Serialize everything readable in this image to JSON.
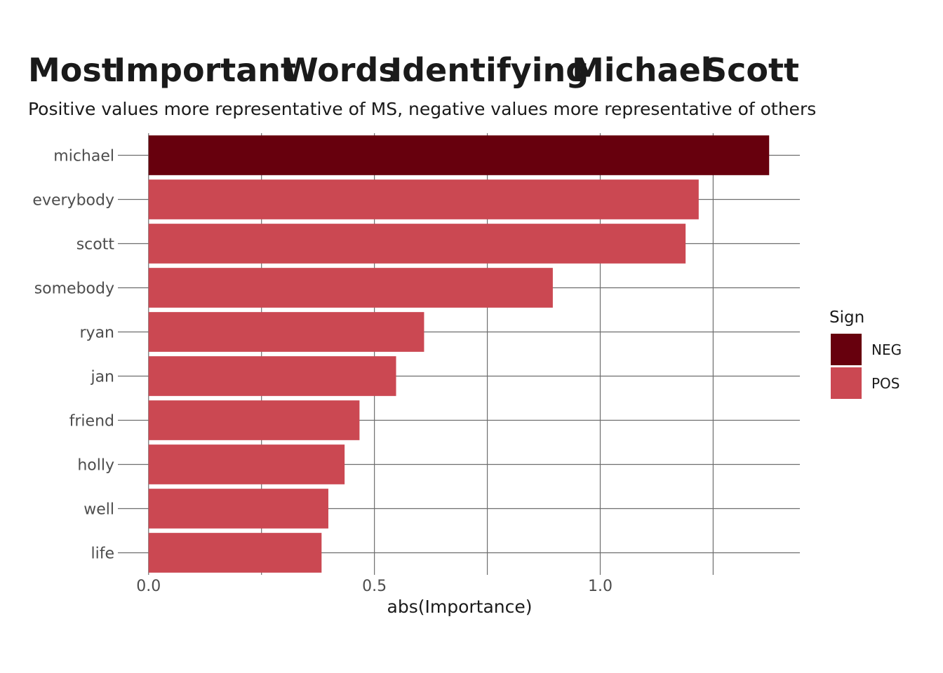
{
  "chart_data": {
    "type": "bar",
    "orientation": "horizontal",
    "title_words": [
      "Most",
      "Important",
      "Words",
      "Identifying",
      "Michael",
      "Scott"
    ],
    "subtitle": "Positive values more representative of MS, negative values more representative of others",
    "xlabel": "abs(Importance)",
    "ylabel": "",
    "categories": [
      "michael",
      "everybody",
      "scott",
      "somebody",
      "ryan",
      "jan",
      "friend",
      "holly",
      "well",
      "life"
    ],
    "values": [
      1.374,
      1.218,
      1.189,
      0.895,
      0.61,
      0.548,
      0.467,
      0.434,
      0.398,
      0.383
    ],
    "signs": [
      "NEG",
      "POS",
      "POS",
      "POS",
      "POS",
      "POS",
      "POS",
      "POS",
      "POS",
      "POS"
    ],
    "xlim": [
      -0.068,
      1.442
    ],
    "x_ticks": [
      0.0,
      0.5,
      1.0
    ],
    "x_tick_labels": [
      "0.0",
      "0.5",
      "1.0"
    ],
    "x_gridlines": [
      0.0,
      0.25,
      0.5,
      0.75,
      1.0,
      1.25
    ],
    "grid": true,
    "legend": {
      "title": "Sign",
      "placement": "right",
      "entries": [
        {
          "label": "NEG",
          "color": "#67000d"
        },
        {
          "label": "POS",
          "color": "#cb4852"
        }
      ]
    }
  }
}
